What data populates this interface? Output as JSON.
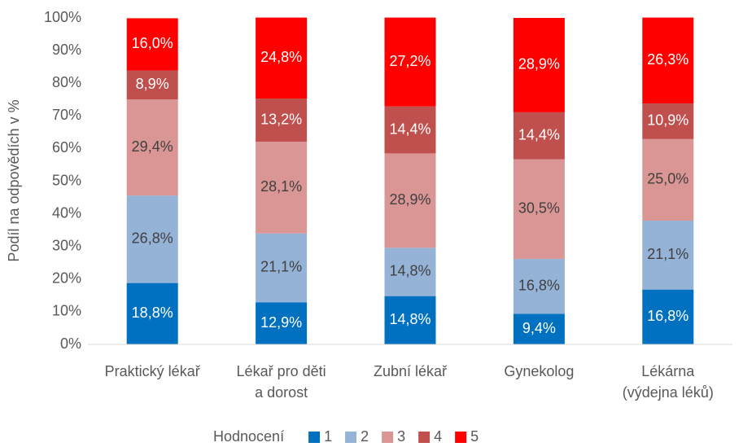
{
  "chart_data": {
    "type": "stacked_bar",
    "y_label": "Podíl na odpovědích v %",
    "categories": [
      "Praktický lékař",
      "Lékař pro děti\na dorost",
      "Zubní lékař",
      "Gynekolog",
      "Lékárna\n(výdejna léků)"
    ],
    "legend_title": "Hodnocení",
    "legend": "bottom",
    "grid": false,
    "ylim": [
      0,
      100
    ],
    "yticks": [
      {
        "value": 0,
        "label": "0%"
      },
      {
        "value": 10,
        "label": "10%"
      },
      {
        "value": 20,
        "label": "20%"
      },
      {
        "value": 30,
        "label": "30%"
      },
      {
        "value": 40,
        "label": "40%"
      },
      {
        "value": 50,
        "label": "50%"
      },
      {
        "value": 60,
        "label": "60%"
      },
      {
        "value": 70,
        "label": "70%"
      },
      {
        "value": 80,
        "label": "80%"
      },
      {
        "value": 90,
        "label": "90%"
      },
      {
        "value": 100,
        "label": "100%"
      }
    ],
    "series": [
      {
        "name": "1",
        "color": "#0070c0",
        "label_color": "#ffffff",
        "values": [
          18.8,
          12.9,
          14.8,
          9.4,
          16.8
        ],
        "value_labels": [
          "18,8%",
          "12,9%",
          "14,8%",
          "9,4%",
          "16,8%"
        ]
      },
      {
        "name": "2",
        "color": "#95b3d7",
        "label_color": "#404040",
        "values": [
          26.8,
          21.1,
          14.8,
          16.8,
          21.1
        ],
        "value_labels": [
          "26,8%",
          "21,1%",
          "14,8%",
          "16,8%",
          "21,1%"
        ]
      },
      {
        "name": "3",
        "color": "#da9694",
        "label_color": "#404040",
        "values": [
          29.4,
          28.1,
          28.9,
          30.5,
          25.0
        ],
        "value_labels": [
          "29,4%",
          "28,1%",
          "28,9%",
          "30,5%",
          "25,0%"
        ]
      },
      {
        "name": "4",
        "color": "#c0504d",
        "label_color": "#ffffff",
        "values": [
          8.9,
          13.2,
          14.4,
          14.4,
          10.9
        ],
        "value_labels": [
          "8,9%",
          "13,2%",
          "14,4%",
          "14,4%",
          "10,9%"
        ]
      },
      {
        "name": "5",
        "color": "#ff0000",
        "label_color": "#ffffff",
        "values": [
          16.0,
          24.8,
          27.2,
          28.9,
          26.3
        ],
        "value_labels": [
          "16,0%",
          "24,8%",
          "27,2%",
          "28,9%",
          "26,3%"
        ]
      }
    ]
  }
}
